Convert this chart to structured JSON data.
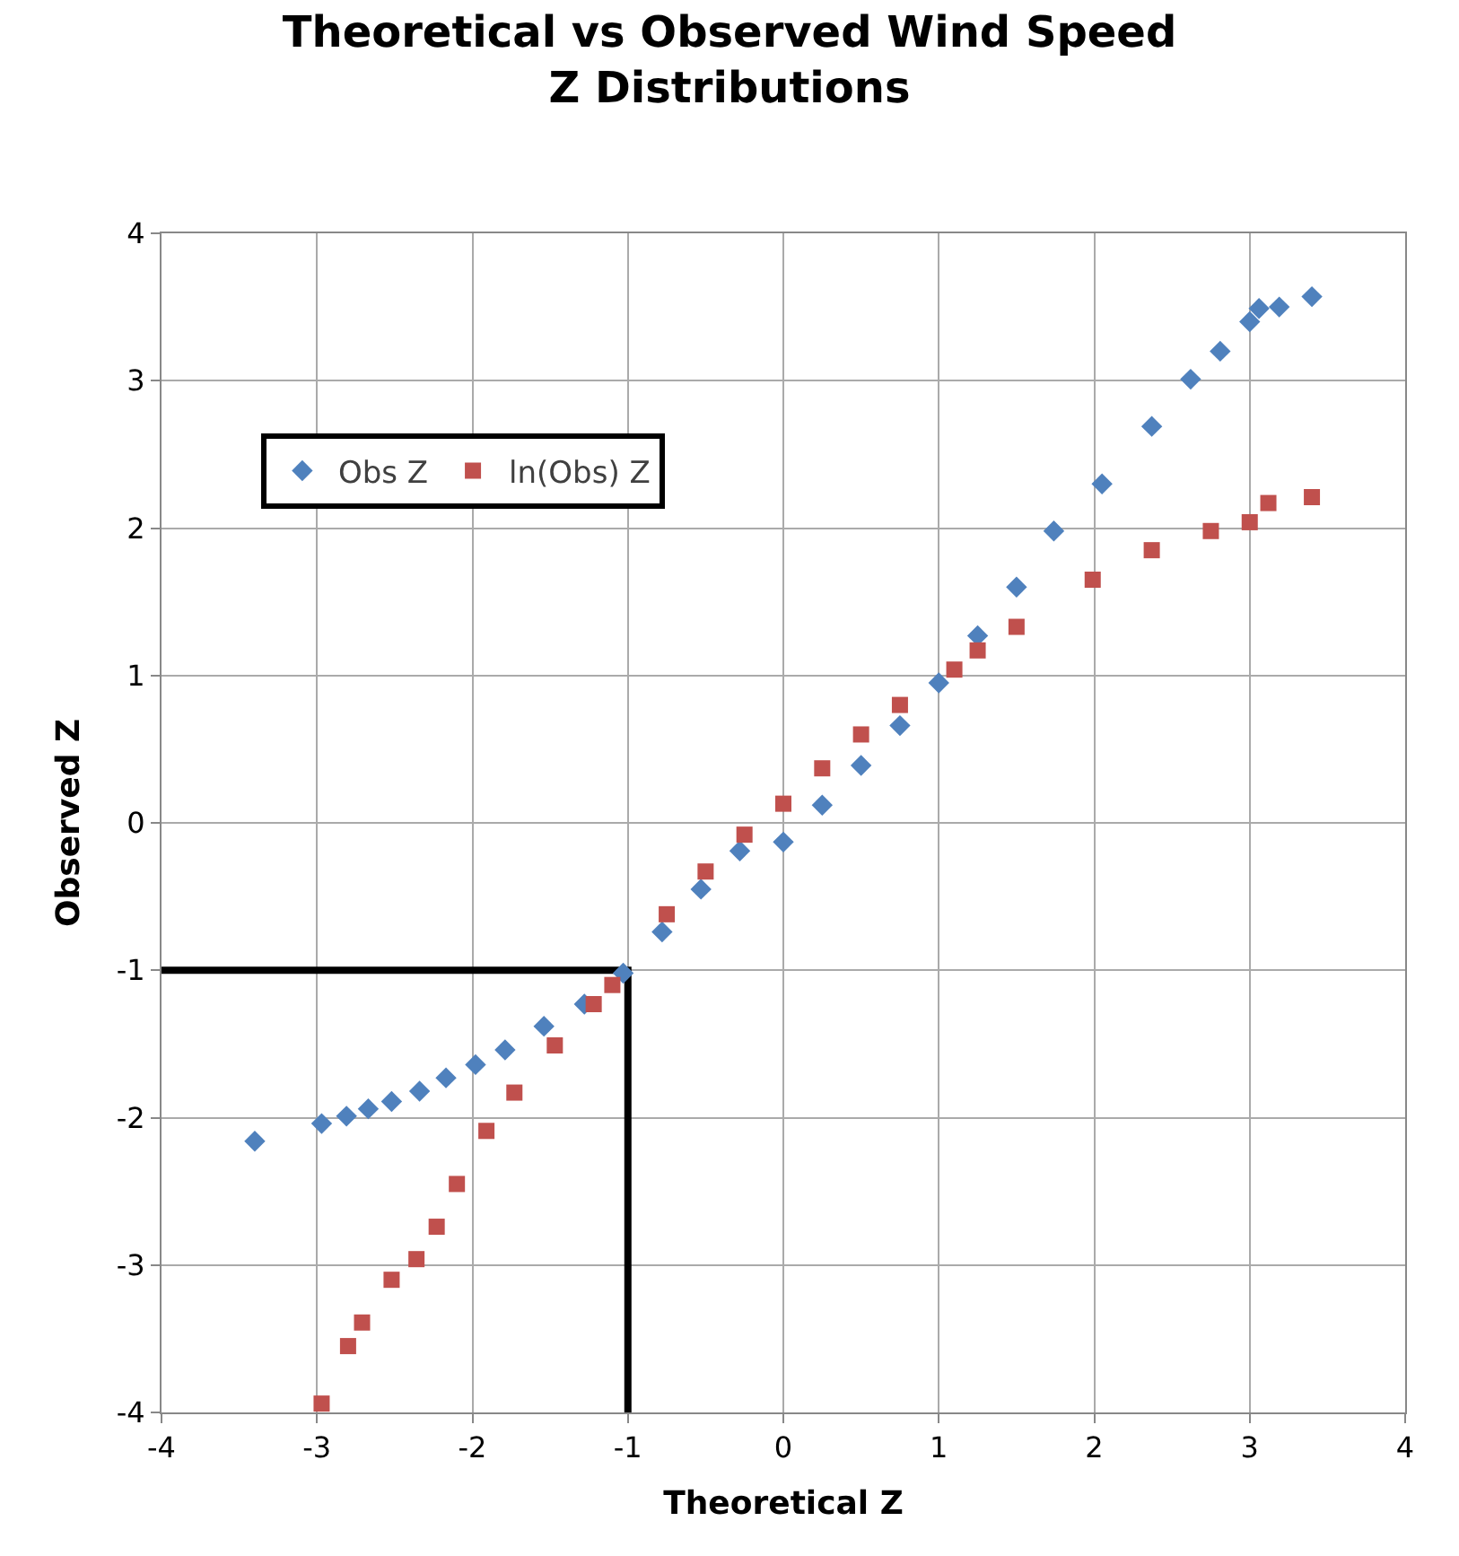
{
  "chart_data": {
    "type": "scatter",
    "title": "Theoretical vs Observed Wind Speed Z Distributions",
    "xlabel": "Theoretical Z",
    "ylabel": "Observed Z",
    "xlim": [
      -4,
      4
    ],
    "ylim": [
      -4,
      4
    ],
    "xticks": [
      -4,
      -3,
      -2,
      -1,
      0,
      1,
      2,
      3,
      4
    ],
    "yticks": [
      -4,
      -3,
      -2,
      -1,
      0,
      1,
      2,
      3,
      4
    ],
    "grid": true,
    "legend": "top left",
    "series": [
      {
        "type": "line",
        "color": "#000000",
        "marker": "none",
        "x": [
          -4,
          -1,
          -1
        ],
        "values": [
          -1,
          -1,
          -4
        ]
      },
      {
        "name": "Obs Z",
        "color": "#4f81bd",
        "marker": "diamond",
        "x": [
          -3.4,
          -2.97,
          -2.81,
          -2.67,
          -2.52,
          -2.34,
          -2.17,
          -1.98,
          -1.79,
          -1.54,
          -1.28,
          -1.03,
          -0.78,
          -0.53,
          -0.28,
          0,
          0.25,
          0.5,
          0.75,
          1,
          1.25,
          1.5,
          1.74,
          2.05,
          2.37,
          2.62,
          2.81,
          3.0,
          3.06,
          3.19,
          3.4
        ],
        "values": [
          -2.16,
          -2.04,
          -1.99,
          -1.94,
          -1.89,
          -1.82,
          -1.73,
          -1.64,
          -1.54,
          -1.38,
          -1.23,
          -1.02,
          -0.74,
          -0.45,
          -0.19,
          -0.13,
          0.12,
          0.39,
          0.66,
          0.95,
          1.27,
          1.6,
          1.98,
          2.3,
          2.69,
          3.01,
          3.2,
          3.4,
          3.49,
          3.5,
          3.57
        ]
      },
      {
        "name": "ln(Obs) Z",
        "color": "#c0504d",
        "marker": "square",
        "x": [
          -2.97,
          -2.8,
          -2.71,
          -2.52,
          -2.36,
          -2.23,
          -2.1,
          -1.91,
          -1.73,
          -1.47,
          -1.22,
          -1.1,
          -0.75,
          -0.5,
          -0.25,
          0,
          0.25,
          0.5,
          0.75,
          1.1,
          1.25,
          1.5,
          1.99,
          2.37,
          2.75,
          3.0,
          3.12,
          3.4
        ],
        "values": [
          -3.94,
          -3.55,
          -3.39,
          -3.1,
          -2.96,
          -2.74,
          -2.45,
          -2.09,
          -1.83,
          -1.51,
          -1.23,
          -1.1,
          -0.62,
          -0.33,
          -0.08,
          0.13,
          0.37,
          0.6,
          0.8,
          1.04,
          1.17,
          1.33,
          1.65,
          1.85,
          1.98,
          2.04,
          2.17,
          2.21
        ]
      }
    ]
  }
}
